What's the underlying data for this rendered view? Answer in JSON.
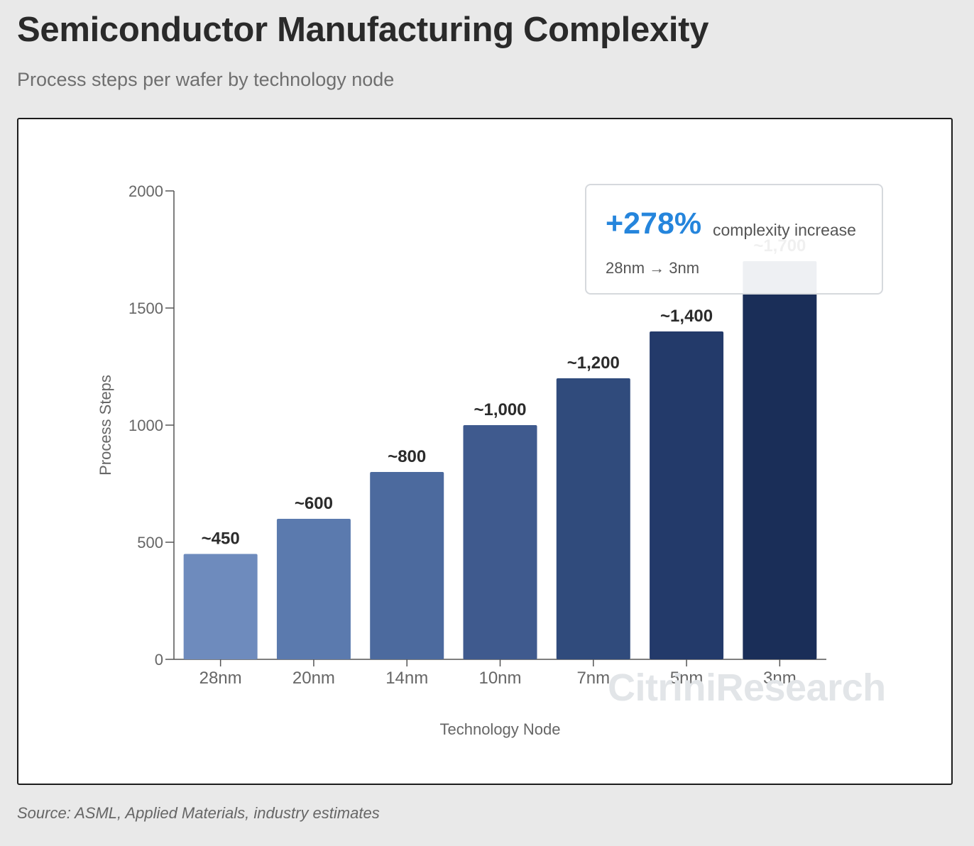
{
  "header": {
    "title": "Semiconductor Manufacturing Complexity",
    "subtitle": "Process steps per wafer by technology node"
  },
  "chart_data": {
    "type": "bar",
    "categories": [
      "28nm",
      "20nm",
      "14nm",
      "10nm",
      "7nm",
      "5nm",
      "3nm"
    ],
    "values": [
      450,
      600,
      800,
      1000,
      1200,
      1400,
      1700
    ],
    "data_labels": [
      "~450",
      "~600",
      "~800",
      "~1,000",
      "~1,200",
      "~1,400",
      "~1,700"
    ],
    "bar_colors": [
      "#6e8bbd",
      "#5b7aae",
      "#4c6a9e",
      "#3f5a8e",
      "#304b7c",
      "#233a6a",
      "#1a2e58"
    ],
    "xlabel": "Technology Node",
    "ylabel": "Process Steps",
    "ylim": [
      0,
      2000
    ],
    "yticks": [
      0,
      500,
      1000,
      1500,
      2000
    ],
    "grid": false
  },
  "callout": {
    "percent": "+278%",
    "description": "complexity increase",
    "range": "28nm → 3nm",
    "accent_color": "#2585dc"
  },
  "watermark": "CitriniResearch",
  "footer": {
    "source": "Source: ASML, Applied Materials, industry estimates"
  }
}
